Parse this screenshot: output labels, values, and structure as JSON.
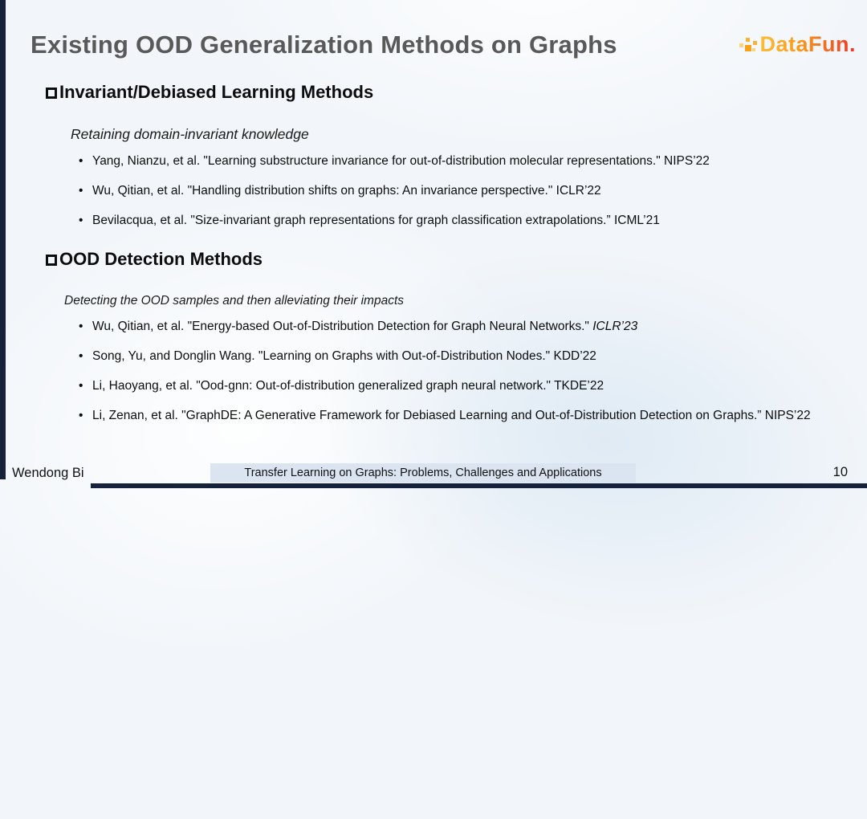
{
  "slide": {
    "title": "Existing OOD Generalization Methods on Graphs",
    "logo_text": "DataFun.",
    "sections": [
      {
        "heading": "Invariant/Debiased Learning Methods",
        "subtitle": "Retaining domain-invariant knowledge",
        "bullets": [
          {
            "text": "Yang, Nianzu, et al. \"Learning substructure invariance for out-of-distribution molecular representations.\" NIPS’22",
            "tail": ""
          },
          {
            "text": "Wu, Qitian, et al. \"Handling distribution shifts on graphs: An invariance perspective.\" ICLR’22",
            "tail": ""
          },
          {
            "text": "Bevilacqua, et al. \"Size-invariant graph representations for graph classification extrapolations.” ICML’21",
            "tail": ""
          }
        ]
      },
      {
        "heading": "OOD Detection Methods",
        "subtitle": "Detecting the OOD samples and then alleviating their impacts",
        "bullets": [
          {
            "text": "Wu, Qitian, et al. \"Energy-based Out-of-Distribution Detection for Graph Neural Networks.\" ",
            "tail": "ICLR’23"
          },
          {
            "text": "Song, Yu, and Donglin Wang. \"Learning on Graphs with Out-of-Distribution Nodes.\"  KDD’22",
            "tail": ""
          },
          {
            "text": "Li, Haoyang, et al. \"Ood-gnn: Out-of-distribution generalized graph neural network.\" TKDE’22",
            "tail": ""
          },
          {
            "text": "Li, Zenan, et al. \"GraphDE: A Generative Framework for Debiased Learning and Out-of-Distribution Detection on Graphs.” NIPS’22",
            "tail": ""
          }
        ]
      }
    ],
    "footer": {
      "author": "Wendong Bi",
      "label": "Transfer Learning on Graphs: Problems, Challenges and Applications",
      "page_number": "10"
    },
    "colors": {
      "background": "#f2f6fa",
      "title_gray": "#595959",
      "frame_navy": "#16213b",
      "footer_label_bg": "#dbe5f1",
      "logo_gradient_start": "#fdbd39",
      "logo_gradient_end": "#ee3424"
    }
  }
}
